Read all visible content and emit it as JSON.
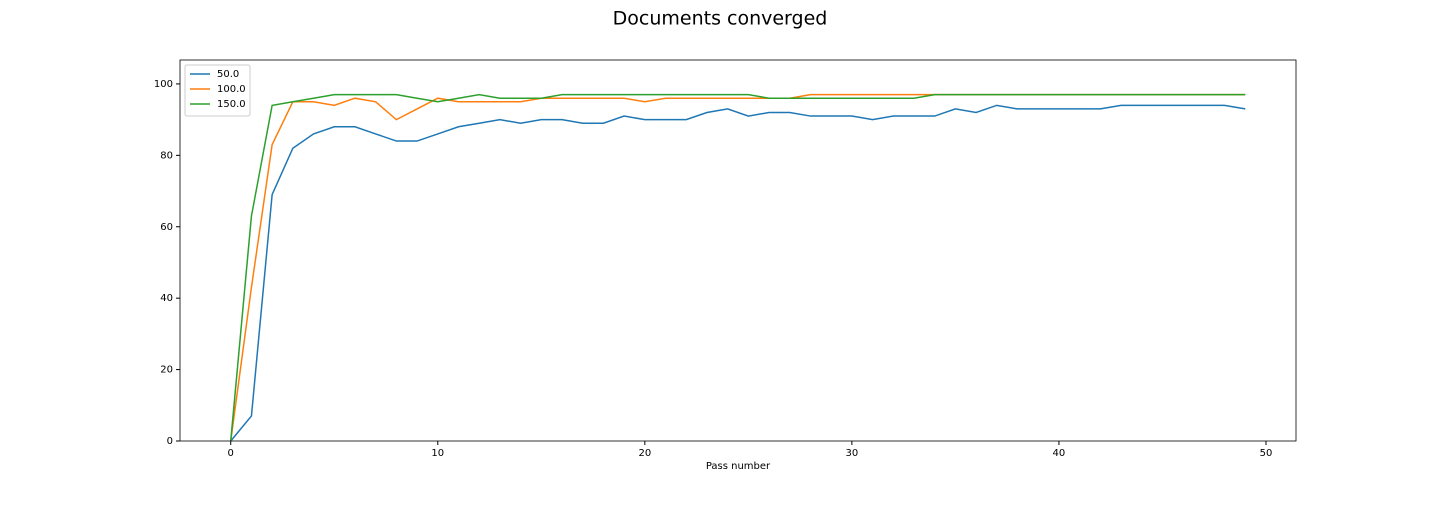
{
  "chart_data": {
    "type": "line",
    "title": "Documents converged",
    "xlabel": "Pass number",
    "x": [
      0,
      1,
      2,
      3,
      4,
      5,
      6,
      7,
      8,
      9,
      10,
      11,
      12,
      13,
      14,
      15,
      16,
      17,
      18,
      19,
      20,
      21,
      22,
      23,
      24,
      25,
      26,
      27,
      28,
      29,
      30,
      31,
      32,
      33,
      34,
      35,
      36,
      37,
      38,
      39,
      40,
      41,
      42,
      43,
      44,
      45,
      46,
      47,
      48,
      49
    ],
    "series": [
      {
        "name": "50.0",
        "color": "#1f77b4",
        "values": [
          0,
          7,
          69,
          82,
          86,
          88,
          88,
          86,
          84,
          84,
          86,
          88,
          89,
          90,
          89,
          90,
          90,
          89,
          89,
          91,
          90,
          90,
          90,
          92,
          93,
          91,
          92,
          92,
          91,
          91,
          91,
          90,
          91,
          91,
          91,
          93,
          92,
          94,
          93,
          93,
          93,
          93,
          93,
          94,
          94,
          94,
          94,
          94,
          94,
          93
        ]
      },
      {
        "name": "100.0",
        "color": "#ff7f0e",
        "values": [
          0,
          43,
          83,
          95,
          95,
          94,
          96,
          95,
          90,
          93,
          96,
          95,
          95,
          95,
          95,
          96,
          96,
          96,
          96,
          96,
          95,
          96,
          96,
          96,
          96,
          96,
          96,
          96,
          97,
          97,
          97,
          97,
          97,
          97,
          97,
          97,
          97,
          97,
          97,
          97,
          97,
          97,
          97,
          97,
          97,
          97,
          97,
          97,
          97,
          97
        ]
      },
      {
        "name": "150.0",
        "color": "#2ca02c",
        "values": [
          0,
          63,
          94,
          95,
          96,
          97,
          97,
          97,
          97,
          96,
          95,
          96,
          97,
          96,
          96,
          96,
          97,
          97,
          97,
          97,
          97,
          97,
          97,
          97,
          97,
          97,
          96,
          96,
          96,
          96,
          96,
          96,
          96,
          96,
          97,
          97,
          97,
          97,
          97,
          97,
          97,
          97,
          97,
          97,
          97,
          97,
          97,
          97,
          97,
          97
        ]
      }
    ],
    "xlim": [
      -2.45,
      51.45
    ],
    "xticks": [
      0,
      10,
      20,
      30,
      40,
      50
    ],
    "ylim": [
      0,
      106.7
    ],
    "yticks": [
      0,
      20,
      40,
      60,
      80,
      100
    ],
    "legend": "upper left"
  }
}
